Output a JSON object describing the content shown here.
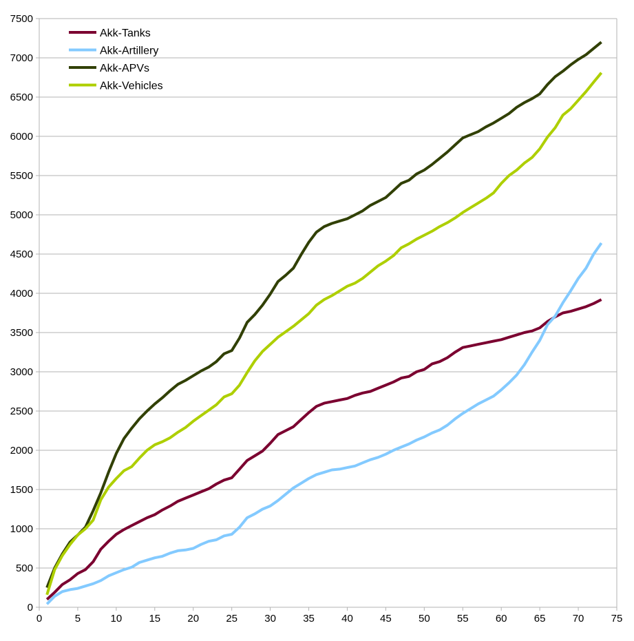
{
  "chart_data": {
    "type": "line",
    "xlim": [
      0,
      75
    ],
    "ylim": [
      0,
      7500
    ],
    "x_ticks": [
      0,
      5,
      10,
      15,
      20,
      25,
      30,
      35,
      40,
      45,
      50,
      55,
      60,
      65,
      70,
      75
    ],
    "y_ticks": [
      0,
      500,
      1000,
      1500,
      2000,
      2500,
      3000,
      3500,
      4000,
      4500,
      5000,
      5500,
      6000,
      6500,
      7000,
      7500
    ],
    "grid": "horizontal",
    "legend_position": "top-left",
    "series": [
      {
        "name": "Akk-Tanks",
        "color": "#7b0030",
        "points": [
          [
            1,
            100
          ],
          [
            2,
            190
          ],
          [
            3,
            290
          ],
          [
            4,
            350
          ],
          [
            5,
            430
          ],
          [
            6,
            480
          ],
          [
            7,
            580
          ],
          [
            8,
            740
          ],
          [
            9,
            840
          ],
          [
            10,
            930
          ],
          [
            11,
            990
          ],
          [
            12,
            1040
          ],
          [
            13,
            1090
          ],
          [
            14,
            1140
          ],
          [
            15,
            1180
          ],
          [
            16,
            1240
          ],
          [
            17,
            1290
          ],
          [
            18,
            1350
          ],
          [
            19,
            1390
          ],
          [
            20,
            1430
          ],
          [
            21,
            1470
          ],
          [
            22,
            1510
          ],
          [
            23,
            1570
          ],
          [
            24,
            1620
          ],
          [
            25,
            1650
          ],
          [
            26,
            1760
          ],
          [
            27,
            1870
          ],
          [
            28,
            1930
          ],
          [
            29,
            1990
          ],
          [
            30,
            2090
          ],
          [
            31,
            2200
          ],
          [
            32,
            2250
          ],
          [
            33,
            2300
          ],
          [
            34,
            2390
          ],
          [
            35,
            2480
          ],
          [
            36,
            2560
          ],
          [
            37,
            2600
          ],
          [
            38,
            2620
          ],
          [
            39,
            2640
          ],
          [
            40,
            2660
          ],
          [
            41,
            2700
          ],
          [
            42,
            2730
          ],
          [
            43,
            2750
          ],
          [
            44,
            2790
          ],
          [
            45,
            2830
          ],
          [
            46,
            2870
          ],
          [
            47,
            2920
          ],
          [
            48,
            2940
          ],
          [
            49,
            3000
          ],
          [
            50,
            3030
          ],
          [
            51,
            3100
          ],
          [
            52,
            3130
          ],
          [
            53,
            3180
          ],
          [
            54,
            3250
          ],
          [
            55,
            3310
          ],
          [
            56,
            3330
          ],
          [
            57,
            3350
          ],
          [
            58,
            3370
          ],
          [
            59,
            3390
          ],
          [
            60,
            3410
          ],
          [
            61,
            3440
          ],
          [
            62,
            3470
          ],
          [
            63,
            3500
          ],
          [
            64,
            3520
          ],
          [
            65,
            3560
          ],
          [
            66,
            3640
          ],
          [
            67,
            3700
          ],
          [
            68,
            3750
          ],
          [
            69,
            3770
          ],
          [
            70,
            3800
          ],
          [
            71,
            3830
          ],
          [
            72,
            3870
          ],
          [
            73,
            3920
          ]
        ]
      },
      {
        "name": "Akk-Artillery",
        "color": "#83caff",
        "points": [
          [
            1,
            40
          ],
          [
            2,
            140
          ],
          [
            3,
            200
          ],
          [
            4,
            225
          ],
          [
            5,
            240
          ],
          [
            6,
            270
          ],
          [
            7,
            300
          ],
          [
            8,
            340
          ],
          [
            9,
            400
          ],
          [
            10,
            440
          ],
          [
            11,
            480
          ],
          [
            12,
            510
          ],
          [
            13,
            570
          ],
          [
            14,
            600
          ],
          [
            15,
            630
          ],
          [
            16,
            650
          ],
          [
            17,
            690
          ],
          [
            18,
            720
          ],
          [
            19,
            730
          ],
          [
            20,
            750
          ],
          [
            21,
            800
          ],
          [
            22,
            840
          ],
          [
            23,
            860
          ],
          [
            24,
            910
          ],
          [
            25,
            930
          ],
          [
            26,
            1020
          ],
          [
            27,
            1140
          ],
          [
            28,
            1190
          ],
          [
            29,
            1250
          ],
          [
            30,
            1290
          ],
          [
            31,
            1360
          ],
          [
            32,
            1440
          ],
          [
            33,
            1520
          ],
          [
            34,
            1580
          ],
          [
            35,
            1640
          ],
          [
            36,
            1690
          ],
          [
            37,
            1720
          ],
          [
            38,
            1750
          ],
          [
            39,
            1760
          ],
          [
            40,
            1780
          ],
          [
            41,
            1800
          ],
          [
            42,
            1840
          ],
          [
            43,
            1880
          ],
          [
            44,
            1910
          ],
          [
            45,
            1950
          ],
          [
            46,
            2000
          ],
          [
            47,
            2040
          ],
          [
            48,
            2080
          ],
          [
            49,
            2130
          ],
          [
            50,
            2170
          ],
          [
            51,
            2220
          ],
          [
            52,
            2260
          ],
          [
            53,
            2320
          ],
          [
            54,
            2400
          ],
          [
            55,
            2470
          ],
          [
            56,
            2530
          ],
          [
            57,
            2590
          ],
          [
            58,
            2640
          ],
          [
            59,
            2690
          ],
          [
            60,
            2770
          ],
          [
            61,
            2860
          ],
          [
            62,
            2960
          ],
          [
            63,
            3090
          ],
          [
            64,
            3250
          ],
          [
            65,
            3400
          ],
          [
            66,
            3600
          ],
          [
            67,
            3710
          ],
          [
            68,
            3880
          ],
          [
            69,
            4030
          ],
          [
            70,
            4190
          ],
          [
            71,
            4320
          ],
          [
            72,
            4500
          ],
          [
            73,
            4640
          ]
        ]
      },
      {
        "name": "Akk-APVs",
        "color": "#314004",
        "points": [
          [
            1,
            250
          ],
          [
            2,
            500
          ],
          [
            3,
            680
          ],
          [
            4,
            830
          ],
          [
            5,
            920
          ],
          [
            6,
            1020
          ],
          [
            7,
            1230
          ],
          [
            8,
            1460
          ],
          [
            9,
            1720
          ],
          [
            10,
            1960
          ],
          [
            11,
            2150
          ],
          [
            12,
            2280
          ],
          [
            13,
            2400
          ],
          [
            14,
            2500
          ],
          [
            15,
            2590
          ],
          [
            16,
            2670
          ],
          [
            17,
            2760
          ],
          [
            18,
            2840
          ],
          [
            19,
            2890
          ],
          [
            20,
            2950
          ],
          [
            21,
            3010
          ],
          [
            22,
            3060
          ],
          [
            23,
            3130
          ],
          [
            24,
            3230
          ],
          [
            25,
            3270
          ],
          [
            26,
            3430
          ],
          [
            27,
            3630
          ],
          [
            28,
            3730
          ],
          [
            29,
            3850
          ],
          [
            30,
            3990
          ],
          [
            31,
            4150
          ],
          [
            32,
            4230
          ],
          [
            33,
            4320
          ],
          [
            34,
            4490
          ],
          [
            35,
            4650
          ],
          [
            36,
            4780
          ],
          [
            37,
            4850
          ],
          [
            38,
            4890
          ],
          [
            39,
            4920
          ],
          [
            40,
            4950
          ],
          [
            41,
            5000
          ],
          [
            42,
            5050
          ],
          [
            43,
            5120
          ],
          [
            44,
            5170
          ],
          [
            45,
            5220
          ],
          [
            46,
            5310
          ],
          [
            47,
            5400
          ],
          [
            48,
            5440
          ],
          [
            49,
            5520
          ],
          [
            50,
            5570
          ],
          [
            51,
            5640
          ],
          [
            52,
            5720
          ],
          [
            53,
            5800
          ],
          [
            54,
            5890
          ],
          [
            55,
            5980
          ],
          [
            56,
            6020
          ],
          [
            57,
            6060
          ],
          [
            58,
            6120
          ],
          [
            59,
            6170
          ],
          [
            60,
            6230
          ],
          [
            61,
            6290
          ],
          [
            62,
            6370
          ],
          [
            63,
            6430
          ],
          [
            64,
            6480
          ],
          [
            65,
            6540
          ],
          [
            66,
            6660
          ],
          [
            67,
            6760
          ],
          [
            68,
            6830
          ],
          [
            69,
            6910
          ],
          [
            70,
            6980
          ],
          [
            71,
            7040
          ],
          [
            72,
            7120
          ],
          [
            73,
            7200
          ]
        ]
      },
      {
        "name": "Akk-Vehicles",
        "color": "#aecf00",
        "points": [
          [
            1,
            160
          ],
          [
            2,
            480
          ],
          [
            3,
            660
          ],
          [
            4,
            800
          ],
          [
            5,
            920
          ],
          [
            6,
            1000
          ],
          [
            7,
            1110
          ],
          [
            8,
            1370
          ],
          [
            9,
            1530
          ],
          [
            10,
            1640
          ],
          [
            11,
            1740
          ],
          [
            12,
            1790
          ],
          [
            13,
            1900
          ],
          [
            14,
            2000
          ],
          [
            15,
            2070
          ],
          [
            16,
            2110
          ],
          [
            17,
            2160
          ],
          [
            18,
            2230
          ],
          [
            19,
            2290
          ],
          [
            20,
            2370
          ],
          [
            21,
            2440
          ],
          [
            22,
            2510
          ],
          [
            23,
            2580
          ],
          [
            24,
            2680
          ],
          [
            25,
            2720
          ],
          [
            26,
            2830
          ],
          [
            27,
            2990
          ],
          [
            28,
            3140
          ],
          [
            29,
            3260
          ],
          [
            30,
            3350
          ],
          [
            31,
            3440
          ],
          [
            32,
            3510
          ],
          [
            33,
            3580
          ],
          [
            34,
            3660
          ],
          [
            35,
            3740
          ],
          [
            36,
            3850
          ],
          [
            37,
            3920
          ],
          [
            38,
            3970
          ],
          [
            39,
            4030
          ],
          [
            40,
            4090
          ],
          [
            41,
            4130
          ],
          [
            42,
            4190
          ],
          [
            43,
            4270
          ],
          [
            44,
            4350
          ],
          [
            45,
            4410
          ],
          [
            46,
            4480
          ],
          [
            47,
            4580
          ],
          [
            48,
            4630
          ],
          [
            49,
            4690
          ],
          [
            50,
            4740
          ],
          [
            51,
            4790
          ],
          [
            52,
            4850
          ],
          [
            53,
            4900
          ],
          [
            54,
            4960
          ],
          [
            55,
            5030
          ],
          [
            56,
            5090
          ],
          [
            57,
            5150
          ],
          [
            58,
            5210
          ],
          [
            59,
            5280
          ],
          [
            60,
            5400
          ],
          [
            61,
            5500
          ],
          [
            62,
            5570
          ],
          [
            63,
            5660
          ],
          [
            64,
            5730
          ],
          [
            65,
            5840
          ],
          [
            66,
            5990
          ],
          [
            67,
            6110
          ],
          [
            68,
            6270
          ],
          [
            69,
            6350
          ],
          [
            70,
            6460
          ],
          [
            71,
            6570
          ],
          [
            72,
            6690
          ],
          [
            73,
            6810
          ]
        ]
      }
    ]
  }
}
